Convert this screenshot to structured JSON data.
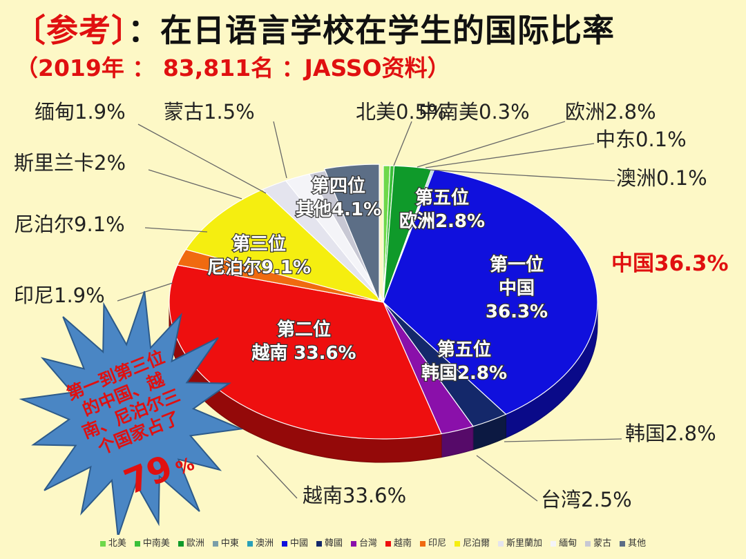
{
  "title": {
    "tag": "〔参考〕",
    "text": "：在日语言学校在学生的国际比率"
  },
  "subtitle": "（2019年 ： 83,811名 ：JASSO资料）",
  "chart_data": {
    "type": "pie",
    "slices": [
      {
        "key": "north_america",
        "outside_label": "北美0.5%",
        "legend": "北美",
        "value": 0.5,
        "color": "#6ed84a"
      },
      {
        "key": "latin_america",
        "outside_label": "中南美0.3%",
        "legend": "中南美",
        "value": 0.3,
        "color": "#3ac03a"
      },
      {
        "key": "europe",
        "outside_label": "欧洲2.8%",
        "legend": "歐洲",
        "value": 2.8,
        "color": "#0f9a2a",
        "inner_label": [
          "第五位",
          "欧洲2.8%"
        ]
      },
      {
        "key": "middle_east",
        "outside_label": "中东0.1%",
        "legend": "中東",
        "value": 0.1,
        "color": "#7a9ea8"
      },
      {
        "key": "oceania",
        "outside_label": "澳洲0.1%",
        "legend": "澳洲",
        "value": 0.1,
        "color": "#2aa0b8"
      },
      {
        "key": "china",
        "outside_label": "中国36.3%",
        "legend": "中國",
        "value": 36.3,
        "color": "#1010dd",
        "inner_label": [
          "第一位",
          "中国",
          "36.3%"
        ],
        "highlight": true
      },
      {
        "key": "korea",
        "outside_label": "韩国2.8%",
        "legend": "韓國",
        "value": 2.8,
        "color": "#14286a",
        "inner_label": [
          "第五位",
          "韩国2.8%"
        ]
      },
      {
        "key": "taiwan",
        "outside_label": "台湾2.5%",
        "legend": "台灣",
        "value": 2.5,
        "color": "#8a10aa"
      },
      {
        "key": "vietnam",
        "outside_label": "越南33.6%",
        "legend": "越南",
        "value": 33.6,
        "color": "#ee0f0f",
        "inner_label": [
          "第二位",
          "越南 33.6%"
        ]
      },
      {
        "key": "indonesia",
        "outside_label": "印尼1.9%",
        "legend": "印尼",
        "value": 1.9,
        "color": "#f06a10"
      },
      {
        "key": "nepal",
        "outside_label": "尼泊尔9.1%",
        "legend": "尼泊爾",
        "value": 9.1,
        "color": "#f5ee10",
        "inner_label": [
          "第三位",
          "尼泊尔9.1%"
        ]
      },
      {
        "key": "sri_lanka",
        "outside_label": "斯里兰卡2%",
        "legend": "斯里蘭加",
        "value": 2.0,
        "color": "#e4e4ee"
      },
      {
        "key": "myanmar",
        "outside_label": "缅甸1.9%",
        "legend": "緬甸",
        "value": 1.9,
        "color": "#f4f4f8"
      },
      {
        "key": "mongolia",
        "outside_label": "蒙古1.5%",
        "legend": "蒙古",
        "value": 1.5,
        "color": "#c8c8d4"
      },
      {
        "key": "other",
        "outside_label": "其他4.1%",
        "legend": "其他",
        "value": 4.1,
        "color": "#5c6e86",
        "inner_label": [
          "第四位",
          "其他4.1%"
        ]
      }
    ],
    "legend_position": "bottom"
  },
  "callout": {
    "lines": [
      "第一到第三位",
      "的中国、越",
      "南、尼泊尔三",
      "个国家占了"
    ],
    "big": "79",
    "unit": "%"
  }
}
